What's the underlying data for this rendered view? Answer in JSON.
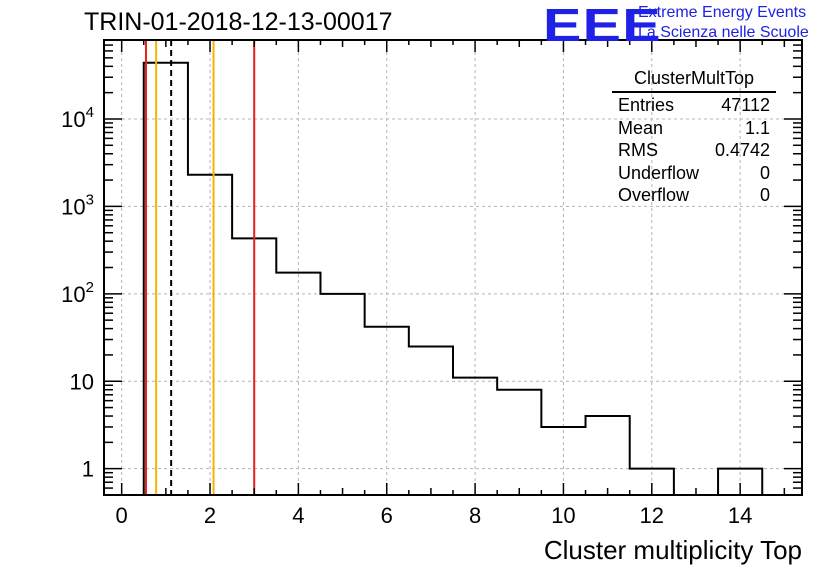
{
  "title": "TRIN-01-2018-12-13-00017",
  "logo": {
    "mark": "EEE",
    "line1": "Extreme Energy Events",
    "line2": "La Scienza nelle Scuole",
    "color": "#1f22e6"
  },
  "chart_data": {
    "type": "histogram",
    "title": "TRIN-01-2018-12-13-00017",
    "xlabel": "Cluster multiplicity Top",
    "ylabel": "",
    "xlim": [
      -0.4,
      15.4
    ],
    "ylim": [
      0.5,
      80000
    ],
    "yscale": "log",
    "grid": true,
    "bin_edges": [
      0.5,
      1.5,
      2.5,
      3.5,
      4.5,
      5.5,
      6.5,
      7.5,
      8.5,
      9.5,
      10.5,
      11.5,
      12.5,
      13.5,
      14.5
    ],
    "counts": [
      44000,
      2300,
      430,
      175,
      100,
      42,
      25,
      11,
      8,
      3,
      4,
      1,
      0,
      1
    ],
    "x_ticks": [
      0,
      2,
      4,
      6,
      8,
      10,
      12,
      14
    ],
    "x_tick_labels": [
      "0",
      "2",
      "4",
      "6",
      "8",
      "10",
      "12",
      "14"
    ],
    "y_ticks": [
      1,
      10,
      100,
      1000,
      10000
    ],
    "y_tick_labels": [
      "1",
      "10",
      "10^2",
      "10^3",
      "10^4"
    ],
    "vertical_lines": [
      {
        "x": 0.55,
        "color": "#e8201a",
        "style": "solid"
      },
      {
        "x": 0.78,
        "color": "#f5b400",
        "style": "solid"
      },
      {
        "x": 1.12,
        "color": "#000000",
        "style": "dashed"
      },
      {
        "x": 2.08,
        "color": "#f5b400",
        "style": "solid"
      },
      {
        "x": 3.0,
        "color": "#e8201a",
        "style": "solid"
      }
    ],
    "stats": {
      "name": "ClusterMultTop",
      "rows": [
        {
          "label": "Entries",
          "value": "47112"
        },
        {
          "label": "Mean",
          "value": "1.1"
        },
        {
          "label": "RMS",
          "value": "0.4742"
        },
        {
          "label": "Underflow",
          "value": "0"
        },
        {
          "label": "Overflow",
          "value": "0"
        }
      ]
    }
  }
}
